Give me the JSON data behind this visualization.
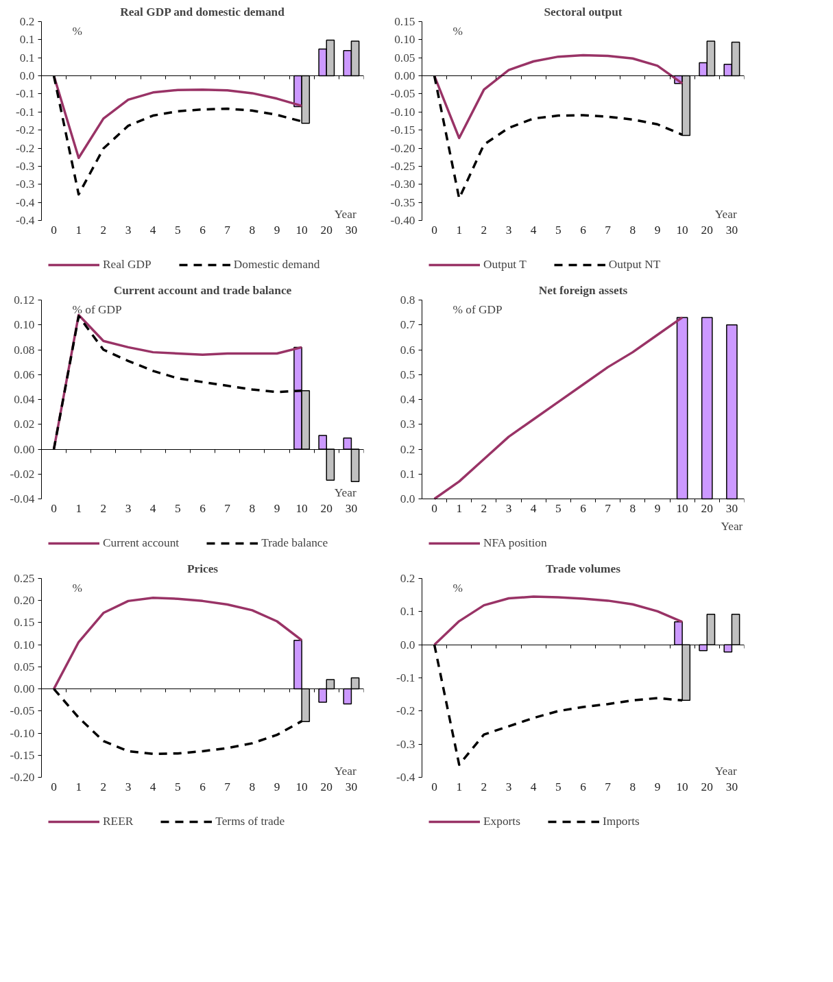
{
  "chart_data": [
    {
      "type": "line",
      "title": "Real GDP and domestic demand",
      "ylabel": "%",
      "xlabel": "Year",
      "legend": "bottom",
      "categories": [
        "0",
        "1",
        "2",
        "3",
        "4",
        "5",
        "6",
        "7",
        "8",
        "9",
        "10",
        "20",
        "30"
      ],
      "ylim": [
        -0.4,
        0.15
      ],
      "yticks": [
        {
          "value": 0.15,
          "label": "0.2"
        },
        {
          "value": 0.1,
          "label": "0.1"
        },
        {
          "value": 0.05,
          "label": "0.1"
        },
        {
          "value": 0,
          "label": "0.0"
        },
        {
          "value": -0.05,
          "label": "-0.1"
        },
        {
          "value": -0.1,
          "label": "-0.1"
        },
        {
          "value": -0.15,
          "label": "-0.2"
        },
        {
          "value": -0.2,
          "label": "-0.2"
        },
        {
          "value": -0.25,
          "label": "-0.3"
        },
        {
          "value": -0.3,
          "label": "-0.3"
        },
        {
          "value": -0.35,
          "label": "-0.4"
        },
        {
          "value": -0.4,
          "label": "-0.4"
        }
      ],
      "series": [
        {
          "name": "Real GDP",
          "line_style": "solid",
          "color": "#993366",
          "values": [
            0,
            -0.227,
            -0.118,
            -0.066,
            -0.046,
            -0.039,
            -0.038,
            -0.04,
            -0.048,
            -0.063,
            -0.083,
            null,
            null
          ]
        },
        {
          "name": "Domestic demand",
          "line_style": "dashed",
          "color": "#000000",
          "values": [
            0,
            -0.328,
            -0.201,
            -0.138,
            -0.11,
            -0.098,
            -0.093,
            -0.091,
            -0.096,
            -0.108,
            -0.126,
            null,
            null
          ]
        },
        {
          "type": "bar",
          "color": "#cc99ff",
          "values": [
            null,
            null,
            null,
            null,
            null,
            null,
            null,
            null,
            null,
            null,
            -0.085,
            0.074,
            0.07
          ]
        },
        {
          "type": "bar",
          "color": "#c0c0c0",
          "values": [
            null,
            null,
            null,
            null,
            null,
            null,
            null,
            null,
            null,
            null,
            -0.131,
            0.099,
            0.096
          ]
        }
      ]
    },
    {
      "type": "line",
      "title": "Sectoral output",
      "ylabel": "%",
      "xlabel": "Year",
      "legend": "bottom",
      "categories": [
        "0",
        "1",
        "2",
        "3",
        "4",
        "5",
        "6",
        "7",
        "8",
        "9",
        "10",
        "20",
        "30"
      ],
      "ylim": [
        -0.4,
        0.15
      ],
      "yticks": [
        {
          "value": 0.15,
          "label": "0.15"
        },
        {
          "value": 0.1,
          "label": "0.10"
        },
        {
          "value": 0.05,
          "label": "0.05"
        },
        {
          "value": 0,
          "label": "0.00"
        },
        {
          "value": -0.05,
          "label": "-0.05"
        },
        {
          "value": -0.1,
          "label": "-0.10"
        },
        {
          "value": -0.15,
          "label": "-0.15"
        },
        {
          "value": -0.2,
          "label": "-0.20"
        },
        {
          "value": -0.25,
          "label": "-0.25"
        },
        {
          "value": -0.3,
          "label": "-0.30"
        },
        {
          "value": -0.35,
          "label": "-0.35"
        },
        {
          "value": -0.4,
          "label": "-0.40"
        }
      ],
      "series": [
        {
          "name": "Output T",
          "line_style": "solid",
          "color": "#993366",
          "values": [
            0,
            -0.172,
            -0.038,
            0.016,
            0.04,
            0.053,
            0.057,
            0.055,
            0.048,
            0.028,
            -0.021,
            null,
            null
          ]
        },
        {
          "name": "Output NT",
          "line_style": "dashed",
          "color": "#000000",
          "values": [
            0,
            -0.339,
            -0.19,
            -0.144,
            -0.118,
            -0.11,
            -0.109,
            -0.113,
            -0.121,
            -0.134,
            -0.163,
            null,
            null
          ]
        },
        {
          "type": "bar",
          "color": "#cc99ff",
          "values": [
            null,
            null,
            null,
            null,
            null,
            null,
            null,
            null,
            null,
            null,
            -0.021,
            0.036,
            0.032
          ]
        },
        {
          "type": "bar",
          "color": "#c0c0c0",
          "values": [
            null,
            null,
            null,
            null,
            null,
            null,
            null,
            null,
            null,
            null,
            -0.165,
            0.096,
            0.093
          ]
        }
      ]
    },
    {
      "type": "line",
      "title": "Current account and trade balance",
      "ylabel": "% of GDP",
      "xlabel": "Year",
      "legend": "bottom",
      "categories": [
        "0",
        "1",
        "2",
        "3",
        "4",
        "5",
        "6",
        "7",
        "8",
        "9",
        "10",
        "20",
        "30"
      ],
      "ylim": [
        -0.04,
        0.12
      ],
      "yticks": [
        {
          "value": 0.12,
          "label": "0.12"
        },
        {
          "value": 0.1,
          "label": "0.10"
        },
        {
          "value": 0.08,
          "label": "0.08"
        },
        {
          "value": 0.06,
          "label": "0.06"
        },
        {
          "value": 0.04,
          "label": "0.04"
        },
        {
          "value": 0.02,
          "label": "0.02"
        },
        {
          "value": 0,
          "label": "0.00"
        },
        {
          "value": -0.02,
          "label": "-0.02"
        },
        {
          "value": -0.04,
          "label": "-0.04"
        }
      ],
      "series": [
        {
          "name": "Current account",
          "line_style": "solid",
          "color": "#993366",
          "values": [
            0,
            0.108,
            0.087,
            0.082,
            0.078,
            0.077,
            0.076,
            0.077,
            0.077,
            0.077,
            0.082,
            null,
            null
          ]
        },
        {
          "name": "Trade balance",
          "line_style": "dashed",
          "color": "#000000",
          "values": [
            0,
            0.107,
            0.08,
            0.071,
            0.063,
            0.057,
            0.054,
            0.051,
            0.048,
            0.046,
            0.047,
            null,
            null
          ]
        },
        {
          "type": "bar",
          "color": "#cc99ff",
          "values": [
            null,
            null,
            null,
            null,
            null,
            null,
            null,
            null,
            null,
            null,
            0.082,
            0.011,
            0.009
          ]
        },
        {
          "type": "bar",
          "color": "#c0c0c0",
          "values": [
            null,
            null,
            null,
            null,
            null,
            null,
            null,
            null,
            null,
            null,
            0.047,
            -0.025,
            -0.026
          ]
        }
      ]
    },
    {
      "type": "line",
      "title": "Net foreign assets",
      "ylabel": "% of GDP",
      "xlabel": "Year",
      "legend": "bottom",
      "categories": [
        "0",
        "1",
        "2",
        "3",
        "4",
        "5",
        "6",
        "7",
        "8",
        "9",
        "10",
        "20",
        "30"
      ],
      "ylim": [
        0,
        0.8
      ],
      "yticks": [
        {
          "value": 0.8,
          "label": "0.8"
        },
        {
          "value": 0.7,
          "label": "0.7"
        },
        {
          "value": 0.6,
          "label": "0.6"
        },
        {
          "value": 0.5,
          "label": "0.5"
        },
        {
          "value": 0.4,
          "label": "0.4"
        },
        {
          "value": 0.3,
          "label": "0.3"
        },
        {
          "value": 0.2,
          "label": "0.2"
        },
        {
          "value": 0.1,
          "label": "0.1"
        },
        {
          "value": 0,
          "label": "0.0"
        }
      ],
      "series": [
        {
          "name": "NFA position",
          "line_style": "solid",
          "color": "#993366",
          "values": [
            0,
            0.07,
            0.16,
            0.25,
            0.32,
            0.39,
            0.46,
            0.53,
            0.59,
            0.66,
            0.73,
            null,
            null
          ]
        },
        {
          "type": "bar",
          "color": "#cc99ff",
          "values": [
            null,
            null,
            null,
            null,
            null,
            null,
            null,
            null,
            null,
            null,
            0.73,
            0.73,
            0.7
          ]
        }
      ]
    },
    {
      "type": "line",
      "title": "Prices",
      "ylabel": "%",
      "xlabel": "Year",
      "legend": "bottom",
      "categories": [
        "0",
        "1",
        "2",
        "3",
        "4",
        "5",
        "6",
        "7",
        "8",
        "9",
        "10",
        "20",
        "30"
      ],
      "ylim": [
        -0.2,
        0.25
      ],
      "yticks": [
        {
          "value": 0.25,
          "label": "0.25"
        },
        {
          "value": 0.2,
          "label": "0.20"
        },
        {
          "value": 0.15,
          "label": "0.15"
        },
        {
          "value": 0.1,
          "label": "0.10"
        },
        {
          "value": 0.05,
          "label": "0.05"
        },
        {
          "value": 0,
          "label": "0.00"
        },
        {
          "value": -0.05,
          "label": "-0.05"
        },
        {
          "value": -0.1,
          "label": "-0.10"
        },
        {
          "value": -0.15,
          "label": "-0.15"
        },
        {
          "value": -0.2,
          "label": "-0.20"
        }
      ],
      "series": [
        {
          "name": "REER",
          "line_style": "solid",
          "color": "#993366",
          "values": [
            0,
            0.106,
            0.172,
            0.199,
            0.206,
            0.204,
            0.199,
            0.191,
            0.178,
            0.153,
            0.11,
            null,
            null
          ]
        },
        {
          "name": "Terms of trade",
          "line_style": "dashed",
          "color": "#000000",
          "values": [
            0,
            -0.065,
            -0.118,
            -0.141,
            -0.147,
            -0.146,
            -0.141,
            -0.134,
            -0.123,
            -0.104,
            -0.073,
            null,
            null
          ]
        },
        {
          "type": "bar",
          "color": "#cc99ff",
          "values": [
            null,
            null,
            null,
            null,
            null,
            null,
            null,
            null,
            null,
            null,
            0.11,
            -0.03,
            -0.034
          ]
        },
        {
          "type": "bar",
          "color": "#c0c0c0",
          "values": [
            null,
            null,
            null,
            null,
            null,
            null,
            null,
            null,
            null,
            null,
            -0.074,
            0.021,
            0.025
          ]
        }
      ]
    },
    {
      "type": "line",
      "title": "Trade volumes",
      "ylabel": "%",
      "xlabel": "Year",
      "legend": "bottom",
      "categories": [
        "0",
        "1",
        "2",
        "3",
        "4",
        "5",
        "6",
        "7",
        "8",
        "9",
        "10",
        "20",
        "30"
      ],
      "ylim": [
        -0.4,
        0.2
      ],
      "yticks": [
        {
          "value": 0.2,
          "label": "0.2"
        },
        {
          "value": 0.1,
          "label": "0.1"
        },
        {
          "value": 0,
          "label": "0.0"
        },
        {
          "value": -0.1,
          "label": "-0.1"
        },
        {
          "value": -0.2,
          "label": "-0.2"
        },
        {
          "value": -0.3,
          "label": "-0.3"
        },
        {
          "value": -0.4,
          "label": "-0.4"
        }
      ],
      "series": [
        {
          "name": "Exports",
          "line_style": "solid",
          "color": "#993366",
          "values": [
            0,
            0.071,
            0.119,
            0.14,
            0.145,
            0.143,
            0.139,
            0.133,
            0.122,
            0.101,
            0.069,
            null,
            null
          ]
        },
        {
          "name": "Imports",
          "line_style": "dashed",
          "color": "#000000",
          "values": [
            0,
            -0.362,
            -0.271,
            -0.246,
            -0.221,
            -0.2,
            -0.188,
            -0.179,
            -0.168,
            -0.161,
            -0.168,
            null,
            null
          ]
        },
        {
          "type": "bar",
          "color": "#cc99ff",
          "values": [
            null,
            null,
            null,
            null,
            null,
            null,
            null,
            null,
            null,
            null,
            0.069,
            -0.018,
            -0.022
          ]
        },
        {
          "type": "bar",
          "color": "#c0c0c0",
          "values": [
            null,
            null,
            null,
            null,
            null,
            null,
            null,
            null,
            null,
            null,
            -0.168,
            0.092,
            0.092
          ]
        }
      ]
    }
  ]
}
